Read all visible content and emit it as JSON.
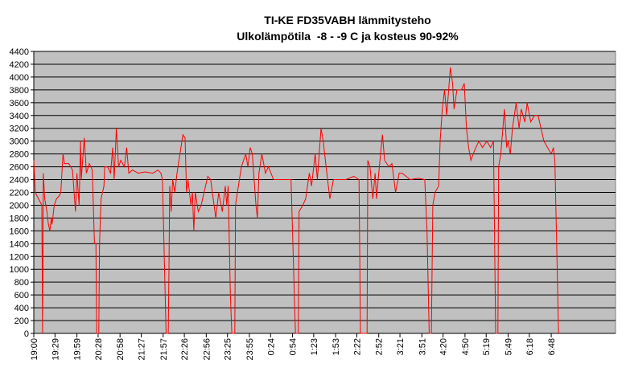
{
  "chart_data": {
    "type": "line",
    "title": "TI-KE FD35VABH lämmitysteho",
    "subtitle": "Ulkolämpötila  -8 - -9 C ja kosteus 90-92%",
    "xlim": [
      0,
      796
    ],
    "xticks": [
      {
        "value": 0,
        "label": "19:00"
      },
      {
        "value": 29,
        "label": "19:29"
      },
      {
        "value": 59,
        "label": "19:59"
      },
      {
        "value": 88,
        "label": "20:28"
      },
      {
        "value": 118,
        "label": "20:58"
      },
      {
        "value": 147,
        "label": "21:27"
      },
      {
        "value": 177,
        "label": "21:57"
      },
      {
        "value": 206,
        "label": "22:26"
      },
      {
        "value": 236,
        "label": "22:56"
      },
      {
        "value": 265,
        "label": "23:25"
      },
      {
        "value": 295,
        "label": "23:55"
      },
      {
        "value": 324,
        "label": "0:24"
      },
      {
        "value": 354,
        "label": "0:54"
      },
      {
        "value": 383,
        "label": "1:23"
      },
      {
        "value": 413,
        "label": "1:53"
      },
      {
        "value": 442,
        "label": "2:22"
      },
      {
        "value": 472,
        "label": "2:52"
      },
      {
        "value": 501,
        "label": "3:21"
      },
      {
        "value": 531,
        "label": "3:51"
      },
      {
        "value": 560,
        "label": "4:20"
      },
      {
        "value": 590,
        "label": "4:50"
      },
      {
        "value": 619,
        "label": "5:19"
      },
      {
        "value": 649,
        "label": "5:49"
      },
      {
        "value": 678,
        "label": "6:18"
      },
      {
        "value": 708,
        "label": "6:48"
      }
    ],
    "ylim": [
      0,
      4400
    ],
    "yticks": [
      0,
      200,
      400,
      600,
      800,
      1000,
      1200,
      1400,
      1600,
      1800,
      2000,
      2200,
      2400,
      2600,
      2800,
      3000,
      3200,
      3400,
      3600,
      3800,
      4000,
      4200,
      4400
    ],
    "grid": true,
    "x": [
      0,
      2,
      11,
      12,
      13,
      15,
      18,
      20,
      22,
      24,
      25,
      28,
      31,
      35,
      37,
      40,
      42,
      48,
      53,
      57,
      59,
      62,
      64,
      65,
      69,
      72,
      76,
      80,
      83,
      85,
      86,
      89,
      90,
      92,
      96,
      97,
      101,
      105,
      108,
      110,
      113,
      116,
      119,
      124,
      127,
      130,
      135,
      143,
      152,
      163,
      170,
      174,
      176,
      181,
      184,
      185,
      186,
      188,
      190,
      193,
      196,
      204,
      207,
      209,
      211,
      215,
      217,
      219,
      221,
      225,
      229,
      233,
      238,
      242,
      249,
      253,
      258,
      262,
      264,
      266,
      269,
      271,
      275,
      276,
      280,
      284,
      290,
      293,
      296,
      299,
      304,
      306,
      308,
      312,
      317,
      321,
      328,
      337,
      348,
      352,
      358,
      362,
      363,
      368,
      372,
      377,
      380,
      385,
      388,
      393,
      396,
      400,
      405,
      410,
      416,
      427,
      438,
      445,
      447,
      456,
      457,
      460,
      464,
      467,
      469,
      472,
      477,
      480,
      486,
      490,
      495,
      500,
      504,
      515,
      526,
      535,
      538,
      541,
      544,
      546,
      549,
      554,
      556,
      559,
      562,
      565,
      570,
      573,
      575,
      579,
      585,
      589,
      592,
      595,
      598,
      603,
      609,
      614,
      620,
      625,
      629,
      632,
      635,
      636,
      639,
      644,
      647,
      649,
      652,
      655,
      660,
      664,
      667,
      672,
      675,
      680,
      685,
      690,
      694,
      698,
      703,
      708,
      711,
      713,
      718
    ],
    "series": [
      {
        "color": "#ff0000",
        "values": [
          2700,
          2200,
          2000,
          0,
          2500,
          2100,
          1900,
          1700,
          1600,
          1800,
          1700,
          2000,
          2100,
          2150,
          2200,
          2800,
          2650,
          2650,
          2550,
          1900,
          2500,
          2000,
          3000,
          2400,
          3050,
          2500,
          2650,
          2550,
          1400,
          1400,
          0,
          0,
          1400,
          2100,
          2300,
          2600,
          2600,
          2500,
          2900,
          2400,
          3200,
          2600,
          2700,
          2600,
          2900,
          2500,
          2550,
          2500,
          2520,
          2500,
          2550,
          2500,
          2400,
          0,
          0,
          1000,
          2300,
          1900,
          2400,
          2200,
          2500,
          3100,
          3050,
          2200,
          2400,
          2000,
          2200,
          1600,
          2200,
          1900,
          2000,
          2200,
          2450,
          2400,
          1800,
          2200,
          1900,
          2300,
          2000,
          2300,
          600,
          0,
          0,
          2000,
          2300,
          2600,
          2800,
          2600,
          2900,
          2800,
          2000,
          1800,
          2500,
          2800,
          2500,
          2600,
          2400,
          2400,
          2400,
          2400,
          0,
          0,
          1900,
          2000,
          2100,
          2500,
          2300,
          2800,
          2400,
          3200,
          3000,
          2600,
          2100,
          2400,
          2400,
          2400,
          2450,
          2400,
          0,
          0,
          2700,
          2600,
          2100,
          2500,
          2100,
          2500,
          3100,
          2700,
          2600,
          2650,
          2200,
          2500,
          2500,
          2400,
          2420,
          2400,
          1600,
          0,
          0,
          2000,
          2200,
          2300,
          3000,
          3500,
          3800,
          3400,
          4150,
          3900,
          3500,
          3800,
          3800,
          3900,
          3200,
          2900,
          2700,
          2850,
          3000,
          2900,
          3000,
          2900,
          3000,
          0,
          0,
          2600,
          2800,
          3500,
          2900,
          3000,
          2800,
          3200,
          3600,
          3200,
          3500,
          3300,
          3600,
          3300,
          3400,
          3400,
          3200,
          3000,
          2900,
          2800,
          2900,
          2700,
          0
        ]
      }
    ]
  }
}
